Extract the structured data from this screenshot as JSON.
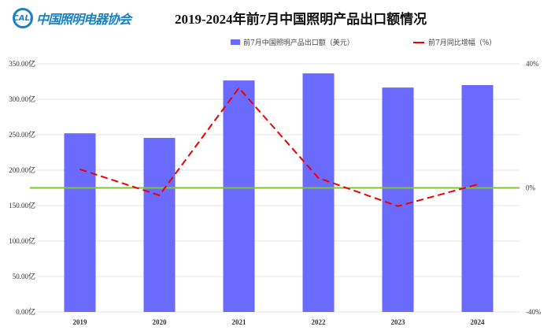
{
  "logo": {
    "mark": "CALI",
    "name": "中国照明电器协会"
  },
  "chart_data": {
    "type": "bar+line",
    "title": "2019-2024年前7月中国照明产品出口额情况",
    "categories": [
      "2019",
      "2020",
      "2021",
      "2022",
      "2023",
      "2024"
    ],
    "series": [
      {
        "name": "前7月中国照明产品出口额（美元）",
        "type": "bar",
        "axis": "left",
        "color": "#6a6aff",
        "values": [
          252,
          245.5,
          326.5,
          336.5,
          316.5,
          320
        ]
      },
      {
        "name": "前7月同比增幅（%）",
        "type": "line",
        "axis": "right",
        "color": "#ee0000",
        "style": "dashed",
        "values": [
          6.0,
          -2.4,
          32.2,
          3.2,
          -5.9,
          1.1
        ]
      }
    ],
    "left_axis": {
      "ylim": [
        0,
        350
      ],
      "ticks": [
        "0.00亿",
        "50.00亿",
        "100.00亿",
        "150.00亿",
        "200.00亿",
        "250.00亿",
        "300.00亿",
        "350.00亿"
      ],
      "tick_values": [
        0,
        50,
        100,
        150,
        200,
        250,
        300,
        350
      ]
    },
    "right_axis": {
      "ylim": [
        -40,
        40
      ],
      "ticks": [
        "-40%",
        "0%",
        "40%"
      ],
      "tick_values": [
        -40,
        0,
        40
      ]
    },
    "reference_line": {
      "value": 0,
      "axis": "right",
      "color": "#7dc832"
    },
    "grid": true,
    "legend": "top-right"
  }
}
